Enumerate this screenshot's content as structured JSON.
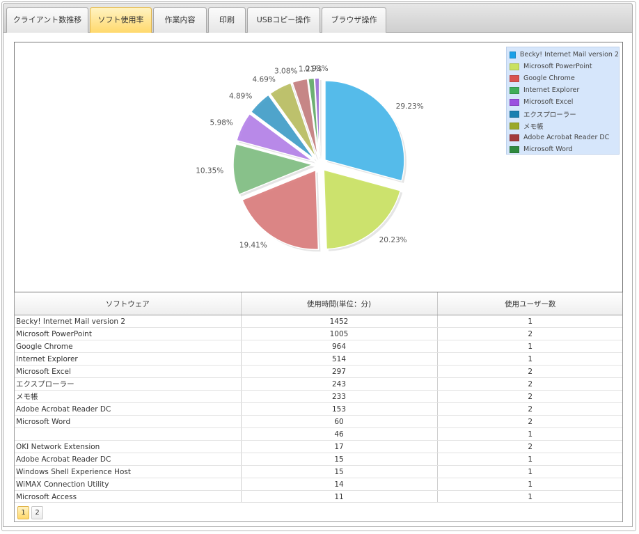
{
  "tabs": [
    {
      "label": "クライアント数推移"
    },
    {
      "label": "ソフト使用率"
    },
    {
      "label": "作業内容"
    },
    {
      "label": "印刷"
    },
    {
      "label": "USBコピー操作"
    },
    {
      "label": "ブラウザ操作"
    }
  ],
  "active_tab": 1,
  "chart_data": {
    "type": "pie",
    "slices": [
      {
        "name": "Becky! Internet Mail version 2",
        "percent": 29.23,
        "label": "29.23%",
        "color": "#45b6ea"
      },
      {
        "name": "Microsoft PowerPoint",
        "percent": 20.23,
        "label": "20.23%",
        "color": "#c9e15f"
      },
      {
        "name": "Google Chrome",
        "percent": 19.41,
        "label": "19.41%",
        "color": "#d97a7a"
      },
      {
        "name": "Internet Explorer",
        "percent": 10.35,
        "label": "10.35%",
        "color": "#7dbd7f"
      },
      {
        "name": "Microsoft Excel",
        "percent": 5.98,
        "label": "5.98%",
        "color": "#b27ee8"
      },
      {
        "name": "エクスプローラー",
        "percent": 4.89,
        "label": "4.89%",
        "color": "#3e9cc8"
      },
      {
        "name": "メモ帳",
        "percent": 4.69,
        "label": "4.69%",
        "color": "#b8bd5e"
      },
      {
        "name": "Adobe Acrobat Reader DC",
        "percent": 3.08,
        "label": "3.08%",
        "color": "#c27b7b"
      },
      {
        "name": "Microsoft Word",
        "percent": 1.21,
        "label": "1.21%",
        "color": "#5fa865"
      },
      {
        "name": "",
        "percent": 0.93,
        "label": "0.93%",
        "color": "#9a6ed6"
      }
    ],
    "legend_position": "top-right"
  },
  "legend": [
    {
      "label": "Becky! Internet Mail version 2",
      "color": "#1aa0e8"
    },
    {
      "label": "Microsoft PowerPoint",
      "color": "#c9e15f"
    },
    {
      "label": "Google Chrome",
      "color": "#d9534f"
    },
    {
      "label": "Internet Explorer",
      "color": "#3fae5a"
    },
    {
      "label": "Microsoft Excel",
      "color": "#9b4fe0"
    },
    {
      "label": "エクスプローラー",
      "color": "#1a7fb0"
    },
    {
      "label": "メモ帳",
      "color": "#9aa82a"
    },
    {
      "label": "Adobe Acrobat Reader DC",
      "color": "#a33a3a"
    },
    {
      "label": "Microsoft Word",
      "color": "#2f8a3f"
    }
  ],
  "table": {
    "headers": [
      "ソフトウェア",
      "使用時間(単位：分)",
      "使用ユーザー数"
    ],
    "rows": [
      [
        "Becky! Internet Mail version 2",
        "1452",
        "1"
      ],
      [
        "Microsoft PowerPoint",
        "1005",
        "2"
      ],
      [
        "Google Chrome",
        "964",
        "1"
      ],
      [
        "Internet Explorer",
        "514",
        "1"
      ],
      [
        "Microsoft Excel",
        "297",
        "2"
      ],
      [
        "エクスプローラー",
        "243",
        "2"
      ],
      [
        "メモ帳",
        "233",
        "2"
      ],
      [
        "Adobe Acrobat Reader DC",
        "153",
        "2"
      ],
      [
        "Microsoft Word",
        "60",
        "2"
      ],
      [
        "",
        "46",
        "1"
      ],
      [
        "OKI Network Extension",
        "17",
        "2"
      ],
      [
        "Adobe Acrobat Reader DC",
        "15",
        "1"
      ],
      [
        "Windows Shell Experience Host",
        "15",
        "1"
      ],
      [
        "WiMAX Connection Utility",
        "14",
        "1"
      ],
      [
        "Microsoft Access",
        "11",
        "1"
      ]
    ]
  },
  "pager": {
    "pages": [
      "1",
      "2"
    ],
    "current": "1"
  }
}
